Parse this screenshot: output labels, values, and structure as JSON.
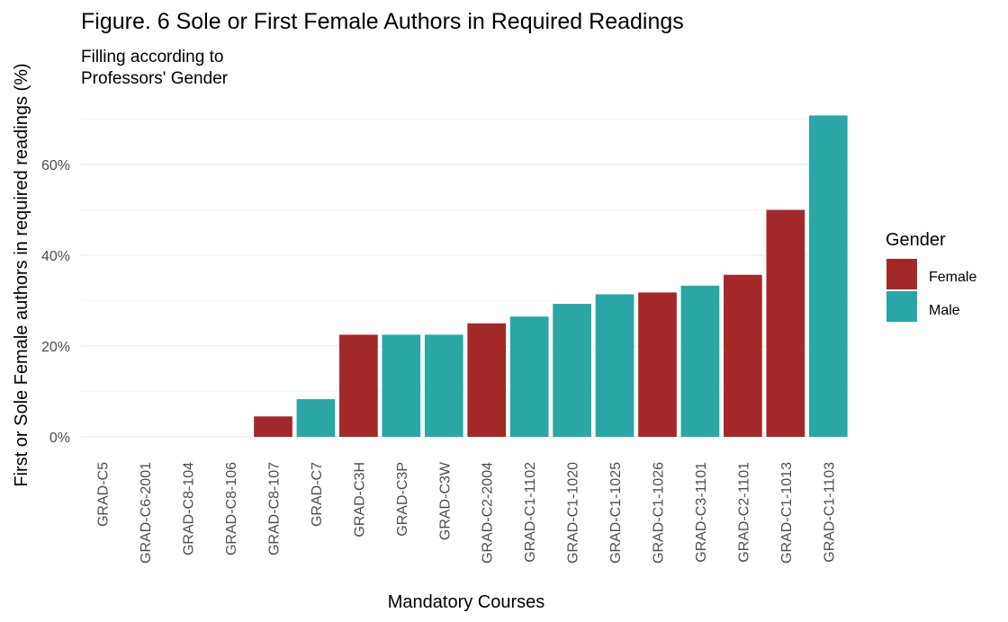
{
  "chart_data": {
    "type": "bar",
    "title": "Figure. 6 Sole or First Female Authors in Required Readings",
    "subtitle": [
      "Filling according to",
      "Professors' Gender"
    ],
    "xlabel": "Mandatory Courses",
    "ylabel": "First or Sole Female authors in required readings (%)",
    "ylim": [
      0,
      70
    ],
    "yticks": [
      0,
      20,
      40,
      60
    ],
    "ytick_labels": [
      "0%",
      "20%",
      "40%",
      "60%"
    ],
    "grid": true,
    "legend": {
      "title": "Gender",
      "position": "right",
      "entries": [
        {
          "label": "Female",
          "color": "#a3282a"
        },
        {
          "label": "Male",
          "color": "#29a6a6"
        }
      ]
    },
    "categories": [
      "GRAD-C5",
      "GRAD-C6-2001",
      "GRAD-C8-104",
      "GRAD-C8-106",
      "GRAD-C8-107",
      "GRAD-C7",
      "GRAD-C3H",
      "GRAD-C3P",
      "GRAD-C3W",
      "GRAD-C2-2004",
      "GRAD-C1-1102",
      "GRAD-C1-1020",
      "GRAD-C1-1025",
      "GRAD-C1-1026",
      "GRAD-C3-1101",
      "GRAD-C2-1101",
      "GRAD-C1-1013",
      "GRAD-C1-1103"
    ],
    "values": [
      0,
      0,
      0,
      0,
      4.5,
      8.3,
      22.5,
      22.5,
      22.5,
      25,
      26.5,
      29.3,
      31.4,
      31.8,
      33.3,
      35.7,
      50,
      70.8
    ],
    "gender": [
      "Male",
      "Male",
      "Male",
      "Male",
      "Female",
      "Male",
      "Female",
      "Male",
      "Male",
      "Female",
      "Male",
      "Male",
      "Male",
      "Female",
      "Male",
      "Female",
      "Female",
      "Male"
    ]
  }
}
